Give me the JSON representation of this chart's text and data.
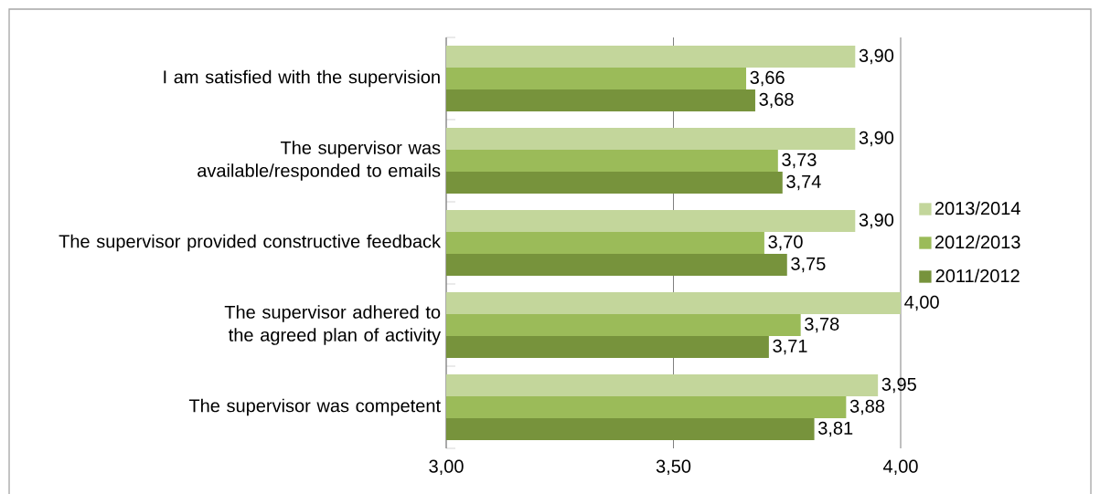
{
  "chart_data": {
    "type": "bar",
    "orientation": "horizontal",
    "categories": [
      "I am satisfied with the supervision",
      "The supervisor was available/responded to emails",
      "The supervisor provided constructive feedback",
      "The supervisor adhered to the agreed plan of activity",
      "The supervisor was competent"
    ],
    "series": [
      {
        "name": "2013/2014",
        "color": "#c3d69b",
        "values": [
          3.9,
          3.9,
          3.9,
          4.0,
          3.95
        ],
        "value_labels": [
          "3,90",
          "3,90",
          "3,90",
          "4,00",
          "3,95"
        ]
      },
      {
        "name": "2012/2013",
        "color": "#9bbb59",
        "values": [
          3.66,
          3.73,
          3.7,
          3.78,
          3.88
        ],
        "value_labels": [
          "3,66",
          "3,73",
          "3,70",
          "3,78",
          "3,88"
        ]
      },
      {
        "name": "2011/2012",
        "color": "#77933c",
        "values": [
          3.68,
          3.74,
          3.75,
          3.71,
          3.81
        ],
        "value_labels": [
          "3,68",
          "3,74",
          "3,75",
          "3,71",
          "3,81"
        ]
      }
    ],
    "xlim": [
      3.0,
      4.0
    ],
    "xticks": [
      {
        "value": 3.0,
        "label": "3,00"
      },
      {
        "value": 3.5,
        "label": "3,50"
      },
      {
        "value": 4.0,
        "label": "4,00"
      }
    ],
    "grid": "x",
    "legend": "right"
  }
}
